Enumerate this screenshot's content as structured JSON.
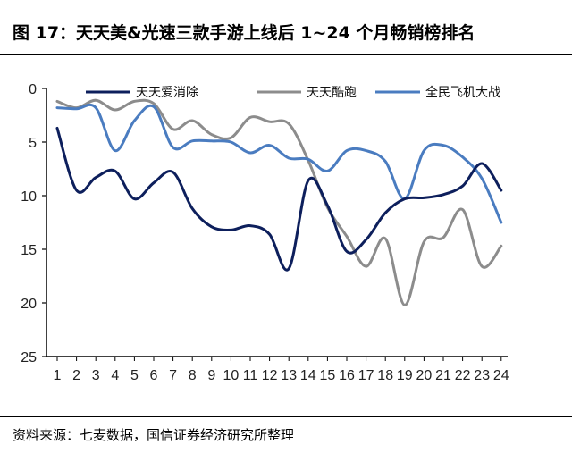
{
  "title": "图 17：天天美&光速三款手游上线后 1~24 个月畅销榜排名",
  "source": "资料来源：七麦数据，国信证券经济研究所整理",
  "chart_data": {
    "type": "line",
    "x": [
      1,
      2,
      3,
      4,
      5,
      6,
      7,
      8,
      9,
      10,
      11,
      12,
      13,
      14,
      15,
      16,
      17,
      18,
      19,
      20,
      21,
      22,
      23,
      24
    ],
    "categories": [
      "1",
      "2",
      "3",
      "4",
      "5",
      "6",
      "7",
      "8",
      "9",
      "10",
      "11",
      "12",
      "13",
      "14",
      "15",
      "16",
      "17",
      "18",
      "19",
      "20",
      "21",
      "22",
      "23",
      "24"
    ],
    "ylim": [
      0,
      25
    ],
    "y_inverted": true,
    "yticks": [
      0,
      5,
      10,
      15,
      20,
      25
    ],
    "xlabel": "",
    "ylabel": "",
    "legend_position": "top",
    "series": [
      {
        "name": "天天爱消除",
        "color": "#0d1f5c",
        "values": [
          3.7,
          9.5,
          8.3,
          7.7,
          10.3,
          8.8,
          7.8,
          11.2,
          12.9,
          13.2,
          12.8,
          13.6,
          16.8,
          8.6,
          10.9,
          15.2,
          14.1,
          11.6,
          10.3,
          10.2,
          9.9,
          9.1,
          7.0,
          9.5
        ]
      },
      {
        "name": "天天酷跑",
        "color": "#8c8c8c",
        "values": [
          1.2,
          1.8,
          1.1,
          2.0,
          1.2,
          1.4,
          3.8,
          3.0,
          4.3,
          4.6,
          2.7,
          3.1,
          3.3,
          6.7,
          11.1,
          13.8,
          16.6,
          14.0,
          20.2,
          14.3,
          13.9,
          11.3,
          16.6,
          14.7
        ]
      },
      {
        "name": "全民飞机大战",
        "color": "#4a7cc0",
        "values": [
          1.8,
          1.9,
          1.8,
          5.8,
          3.0,
          1.7,
          5.5,
          4.9,
          4.9,
          5.0,
          6.0,
          5.3,
          6.5,
          6.6,
          7.7,
          5.8,
          5.8,
          6.8,
          10.3,
          5.8,
          5.3,
          6.4,
          8.4,
          12.5
        ]
      }
    ]
  }
}
